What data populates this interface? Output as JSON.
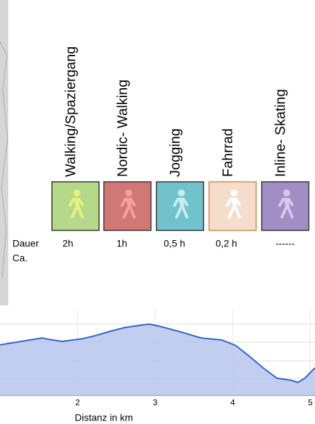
{
  "activities": [
    {
      "name": "Walking/Spaziergang",
      "color": "#b5d98a",
      "figure": "#e6f27d",
      "border": "#333333"
    },
    {
      "name": "Nordic- Walking",
      "color": "#d07876",
      "figure": "#f7a0a0",
      "border": "#333333"
    },
    {
      "name": "Jogging",
      "color": "#72c2cc",
      "figure": "#c8ecf2",
      "border": "#333333"
    },
    {
      "name": "Fahrrad",
      "color": "#f6dccb",
      "figure": "#ffffff",
      "border": "#d08a4a"
    },
    {
      "name": "Inline- Skating",
      "color": "#a08ec4",
      "figure": "#d8c8ee",
      "border": "#333333"
    }
  ],
  "duration_label": "Dauer",
  "duration_note": "Ca.",
  "durations": [
    "2h",
    "1h",
    "0,5 h",
    "0,2 h",
    "------"
  ],
  "chart_data": {
    "type": "area",
    "x_label": "Distanz in km",
    "x": [
      1,
      1.27,
      1.54,
      1.63,
      1.8,
      2.07,
      2.25,
      2.43,
      2.61,
      2.79,
      2.92,
      3.05,
      3.32,
      3.59,
      3.86,
      4.04,
      4.21,
      4.39,
      4.57,
      4.75,
      4.84,
      4.93,
      5.06
    ],
    "values": [
      73,
      78,
      83,
      81,
      78,
      82,
      87,
      93,
      98,
      101,
      103,
      100,
      92,
      83,
      80,
      72,
      57,
      40,
      25,
      22,
      19,
      25,
      40
    ],
    "color": "#2f63c8",
    "fill": "#b7c5ec",
    "xlim": [
      1,
      5.06
    ],
    "ylim": [
      0,
      125
    ],
    "xticks": [
      2,
      3,
      4,
      5
    ]
  }
}
